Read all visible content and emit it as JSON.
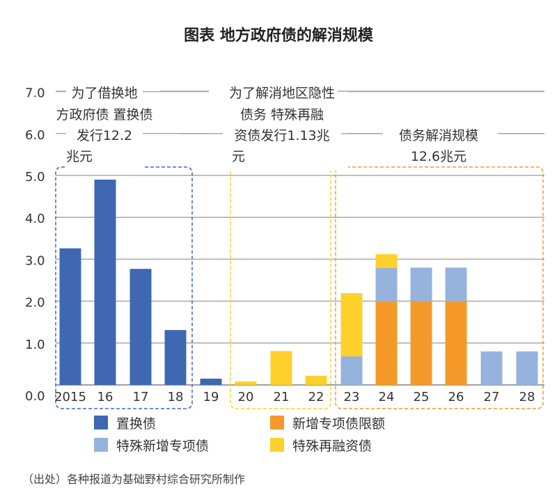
{
  "chart_data": {
    "type": "bar",
    "stacked": true,
    "title": "图表 地方政府债的解消规模",
    "categories": [
      "2015",
      "16",
      "17",
      "18",
      "19",
      "20",
      "21",
      "22",
      "23",
      "24",
      "25",
      "26",
      "27",
      "28"
    ],
    "series": [
      {
        "name": "置换债",
        "color": "#3f68b3",
        "values": [
          3.26,
          4.9,
          2.77,
          1.31,
          0.15,
          0,
          0,
          0,
          0,
          0,
          0,
          0,
          0,
          0
        ]
      },
      {
        "name": "新增专项债限额",
        "color": "#f5992a",
        "values": [
          0,
          0,
          0,
          0,
          0,
          0,
          0,
          0,
          0,
          2.0,
          2.0,
          2.0,
          0,
          0
        ]
      },
      {
        "name": "特殊新增专项债",
        "color": "#95b3dd",
        "values": [
          0,
          0,
          0,
          0,
          0,
          0,
          0,
          0,
          0.68,
          0.79,
          0.8,
          0.8,
          0.8,
          0.8
        ]
      },
      {
        "name": "特殊再融资债",
        "color": "#fdd02c",
        "values": [
          0,
          0,
          0,
          0,
          0,
          0.08,
          0.81,
          0.22,
          1.51,
          0.33,
          0,
          0,
          0,
          0
        ]
      }
    ],
    "ylim": [
      0,
      7
    ],
    "yticks": [
      "0.0",
      "1.0",
      "2.0",
      "3.0",
      "4.0",
      "5.0",
      "6.0",
      "7.0"
    ],
    "grid": true,
    "legend": "bottom",
    "annotations": [
      {
        "lines": [
          "为了借换地",
          "方政府债 置换债",
          "发行12.2",
          "兆元"
        ],
        "color": "#3f68b3"
      },
      {
        "lines": [
          "为了解消地区隐性",
          "债务 特殊再融",
          "资债发行1.13兆",
          "元"
        ],
        "color": "#fdd02c"
      },
      {
        "lines": [
          "债务解消规模",
          "12.6兆元"
        ],
        "color": "#f5992a"
      }
    ],
    "source": "（出处）各种报道为基础野村综合研究所制作"
  }
}
